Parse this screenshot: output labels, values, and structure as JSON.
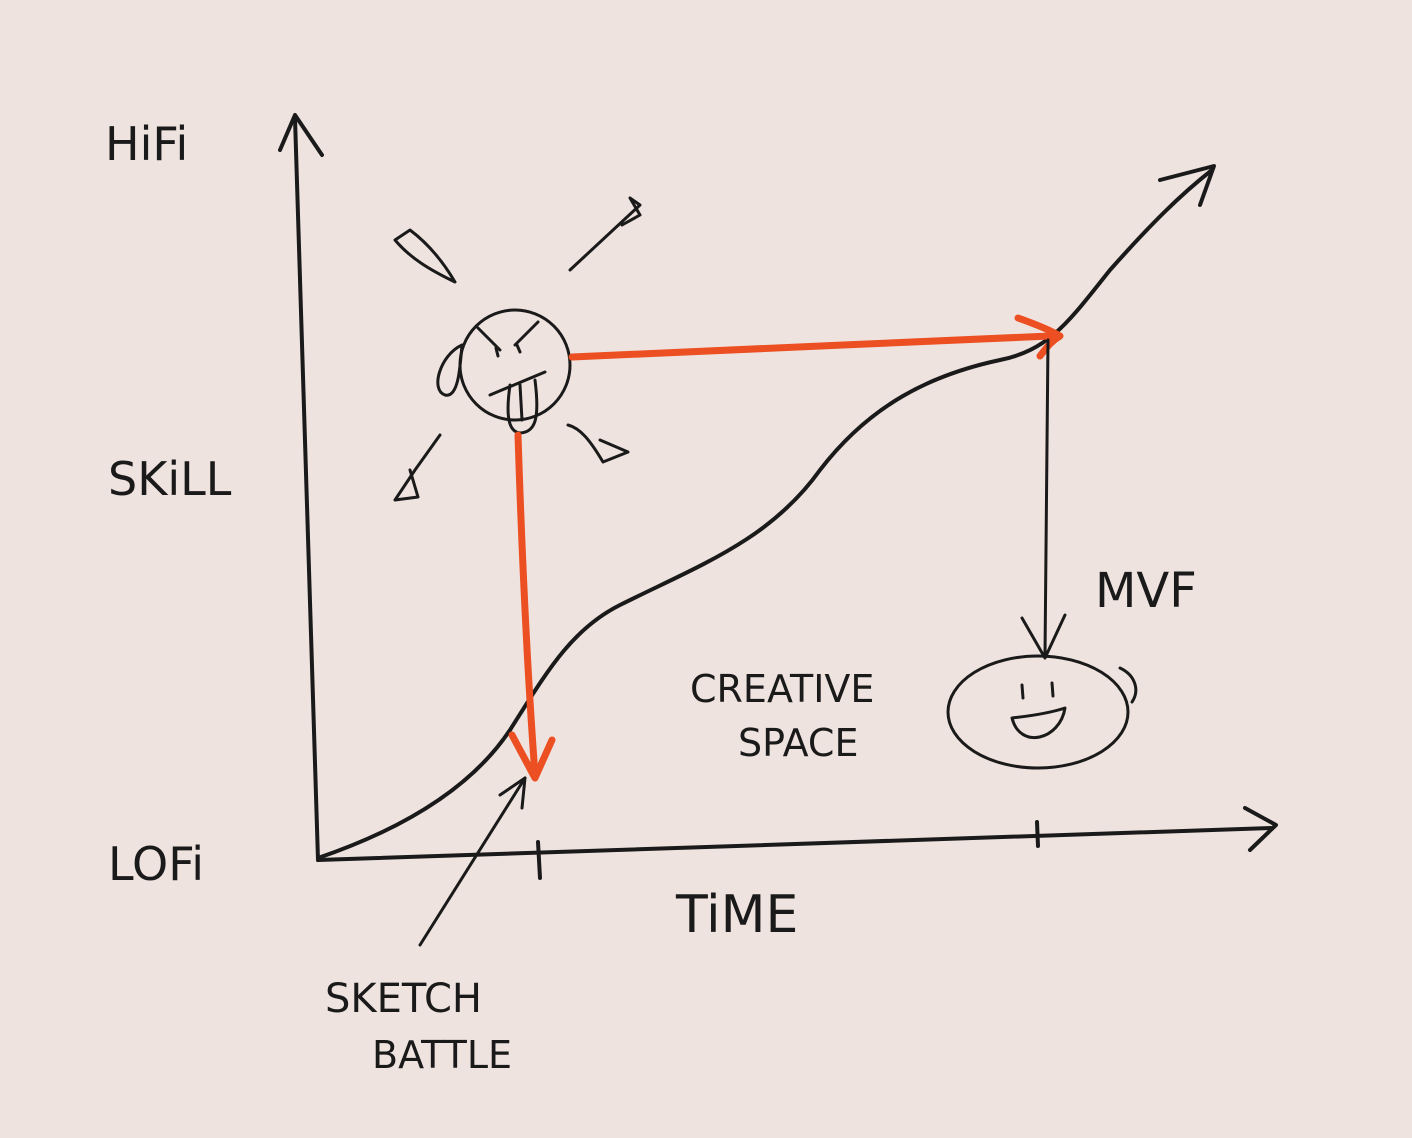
{
  "labels": {
    "y_top": "HiFi",
    "y_mid": "SKiLL",
    "y_bottom": "LOFi",
    "x_axis": "TiME",
    "sketch_battle_line1": "SKETCH",
    "sketch_battle_line2": "BATTLE",
    "creative_space_line1": "CREATIVE",
    "creative_space_line2": "SPACE",
    "mvf": "MVF"
  },
  "colors": {
    "background": "#efe3df",
    "ink": "#1a1a1a",
    "accent": "#ec4f22"
  }
}
